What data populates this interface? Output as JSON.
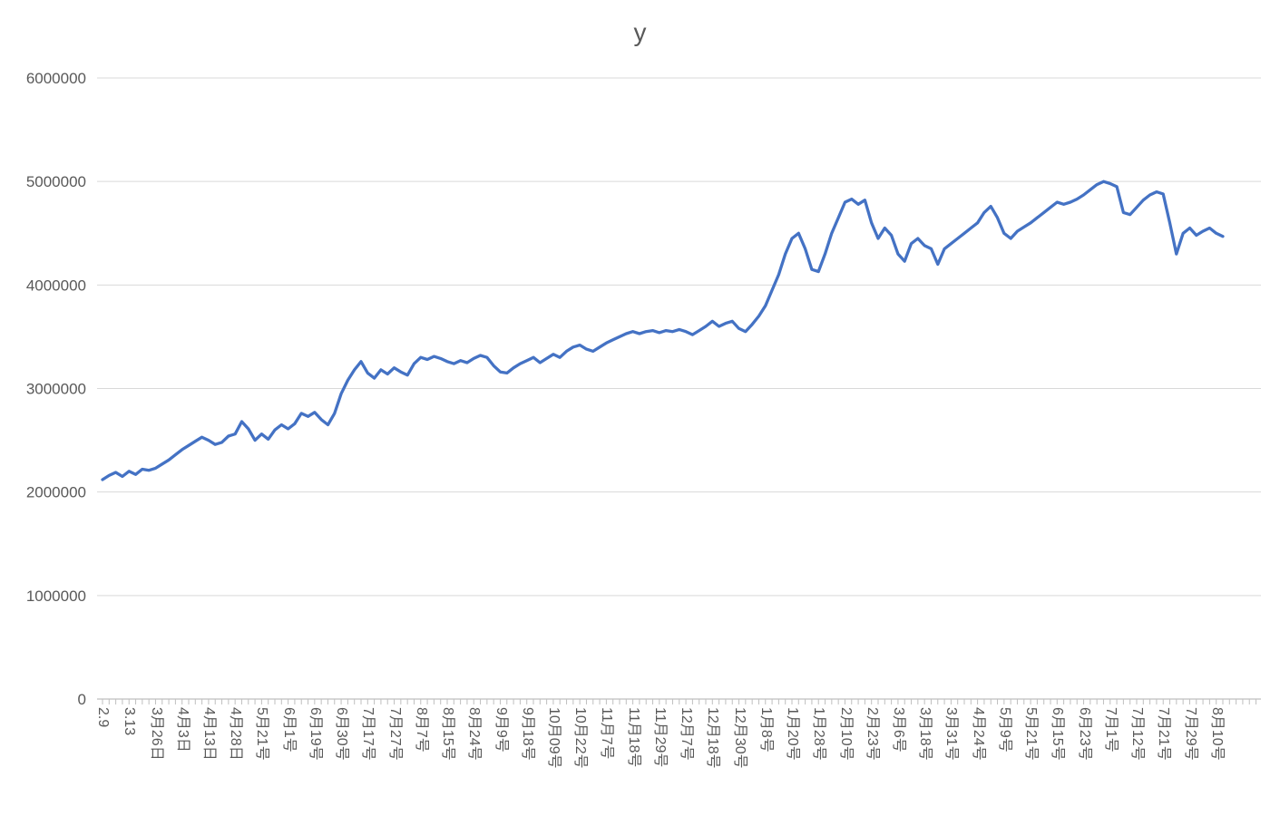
{
  "colors": {
    "background": "#ffffff",
    "grid": "#d9d9d9",
    "axis": "#bfbfbf",
    "text": "#595959",
    "line": "#4472c4"
  },
  "chart_data": {
    "type": "line",
    "title": "y",
    "xlabel": "",
    "ylabel": "",
    "legend_position": "none",
    "grid": true,
    "ylim": [
      0,
      6000000
    ],
    "ytick_step": 1000000,
    "ytick_labels": [
      "0",
      "1000000",
      "2000000",
      "3000000",
      "4000000",
      "5000000",
      "6000000"
    ],
    "label_interval": 4,
    "x_tick_labels": [
      "2.9",
      "3.13",
      "3月26日",
      "4月3日",
      "4月13日",
      "4月28日",
      "5月21号",
      "6月1号",
      "6月19号",
      "6月30号",
      "7月17号",
      "7月27号",
      "8月7号",
      "8月15号",
      "8月24号",
      "9月9号",
      "9月18号",
      "10月09号",
      "10月22号",
      "11月7号",
      "11月18号",
      "11月29号",
      "12月7号",
      "12月18号",
      "12月30号",
      "1月8号",
      "1月20号",
      "1月28号",
      "2月10号",
      "2月23号",
      "3月6号",
      "3月18号",
      "3月31号",
      "4月24号",
      "5月9号",
      "5月21号",
      "6月15号",
      "6月23号",
      "7月1号",
      "7月12号",
      "7月21号",
      "7月29号",
      "8月10号"
    ],
    "series": [
      {
        "name": "y",
        "color": "#4472c4",
        "values": [
          2120000,
          2160000,
          2190000,
          2150000,
          2200000,
          2170000,
          2220000,
          2210000,
          2230000,
          2270000,
          2310000,
          2360000,
          2410000,
          2450000,
          2490000,
          2530000,
          2500000,
          2460000,
          2480000,
          2540000,
          2560000,
          2680000,
          2610000,
          2500000,
          2560000,
          2510000,
          2600000,
          2650000,
          2610000,
          2660000,
          2760000,
          2730000,
          2770000,
          2700000,
          2650000,
          2760000,
          2950000,
          3080000,
          3180000,
          3260000,
          3150000,
          3100000,
          3180000,
          3140000,
          3200000,
          3160000,
          3130000,
          3240000,
          3300000,
          3280000,
          3310000,
          3290000,
          3260000,
          3240000,
          3270000,
          3250000,
          3290000,
          3320000,
          3300000,
          3220000,
          3160000,
          3150000,
          3200000,
          3240000,
          3270000,
          3300000,
          3250000,
          3290000,
          3330000,
          3300000,
          3360000,
          3400000,
          3420000,
          3380000,
          3360000,
          3400000,
          3440000,
          3470000,
          3500000,
          3530000,
          3550000,
          3530000,
          3550000,
          3560000,
          3540000,
          3560000,
          3550000,
          3570000,
          3550000,
          3520000,
          3560000,
          3600000,
          3650000,
          3600000,
          3630000,
          3650000,
          3580000,
          3550000,
          3620000,
          3700000,
          3800000,
          3950000,
          4100000,
          4300000,
          4450000,
          4500000,
          4350000,
          4150000,
          4130000,
          4300000,
          4500000,
          4650000,
          4800000,
          4830000,
          4780000,
          4820000,
          4600000,
          4450000,
          4550000,
          4480000,
          4300000,
          4230000,
          4400000,
          4450000,
          4380000,
          4350000,
          4200000,
          4350000,
          4400000,
          4450000,
          4500000,
          4550000,
          4600000,
          4700000,
          4760000,
          4650000,
          4500000,
          4450000,
          4520000,
          4560000,
          4600000,
          4650000,
          4700000,
          4750000,
          4800000,
          4780000,
          4800000,
          4830000,
          4870000,
          4920000,
          4970000,
          5000000,
          4980000,
          4950000,
          4700000,
          4680000,
          4750000,
          4820000,
          4870000,
          4900000,
          4880000,
          4600000,
          4300000,
          4500000,
          4550000,
          4480000,
          4520000,
          4550000,
          4500000,
          4470000
        ]
      }
    ]
  }
}
